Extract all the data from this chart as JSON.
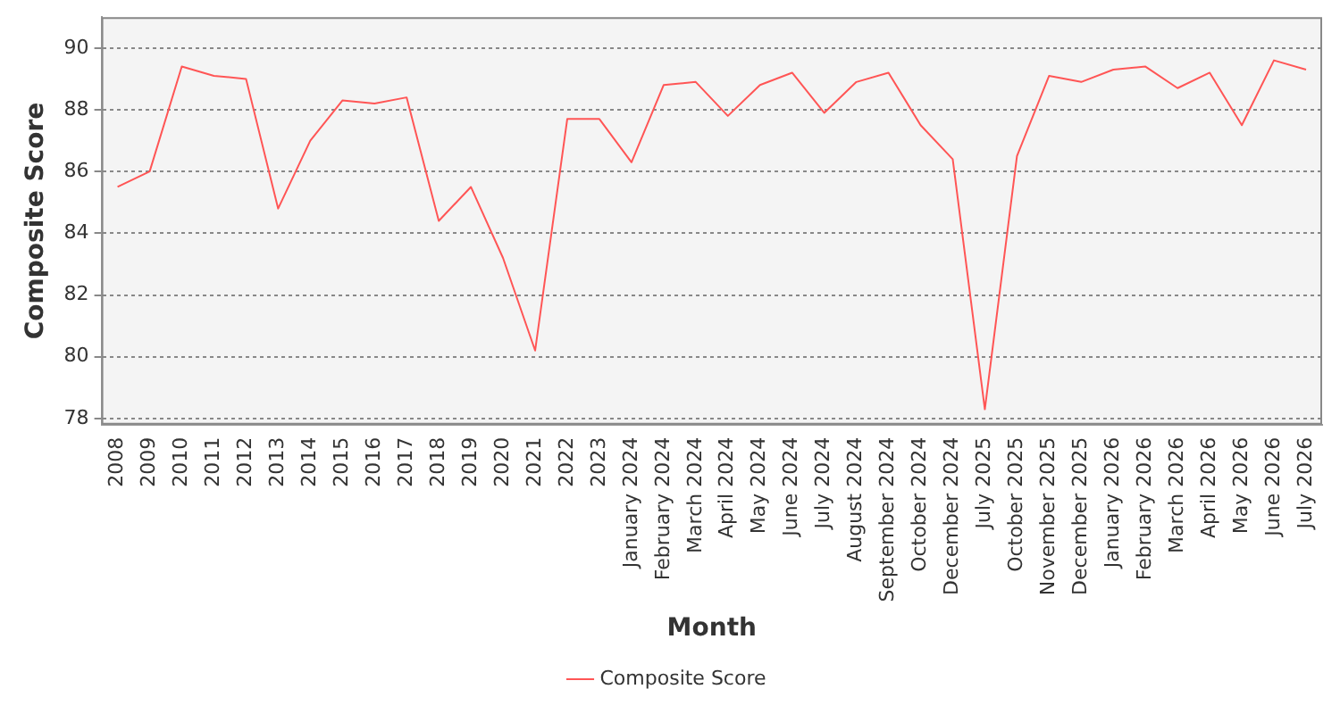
{
  "chart_data": {
    "type": "line",
    "xlabel": "Month",
    "ylabel": "Composite Score",
    "categories": [
      "2008",
      "2009",
      "2010",
      "2011",
      "2012",
      "2013",
      "2014",
      "2015",
      "2016",
      "2017",
      "2018",
      "2019",
      "2020",
      "2021",
      "2022",
      "2023",
      "January 2024",
      "February 2024",
      "March 2024",
      "April 2024",
      "May 2024",
      "June 2024",
      "July 2024",
      "August 2024",
      "September 2024",
      "October 2024",
      "December 2024",
      "July 2025",
      "October 2025",
      "November 2025",
      "December 2025",
      "January 2026",
      "February 2026",
      "March 2026",
      "April 2026",
      "May 2026",
      "June 2026",
      "July 2026"
    ],
    "series": [
      {
        "name": "Composite Score",
        "color": "#ff5555",
        "values": [
          85.5,
          86.0,
          89.4,
          89.1,
          89.0,
          84.8,
          87.0,
          88.3,
          88.2,
          88.4,
          84.4,
          85.5,
          83.2,
          80.2,
          87.7,
          87.7,
          86.3,
          88.8,
          88.9,
          87.8,
          88.8,
          89.2,
          87.9,
          88.9,
          89.2,
          87.5,
          86.4,
          78.3,
          86.5,
          89.1,
          88.9,
          89.3,
          89.4,
          88.7,
          89.2,
          87.5,
          89.6,
          89.3
        ]
      }
    ],
    "ylim": [
      77.8,
      91
    ],
    "yticks": [
      78,
      80,
      82,
      84,
      86,
      88,
      90
    ],
    "grid": "y",
    "legend": "bottom",
    "marker": "none",
    "line_style": "solid"
  }
}
